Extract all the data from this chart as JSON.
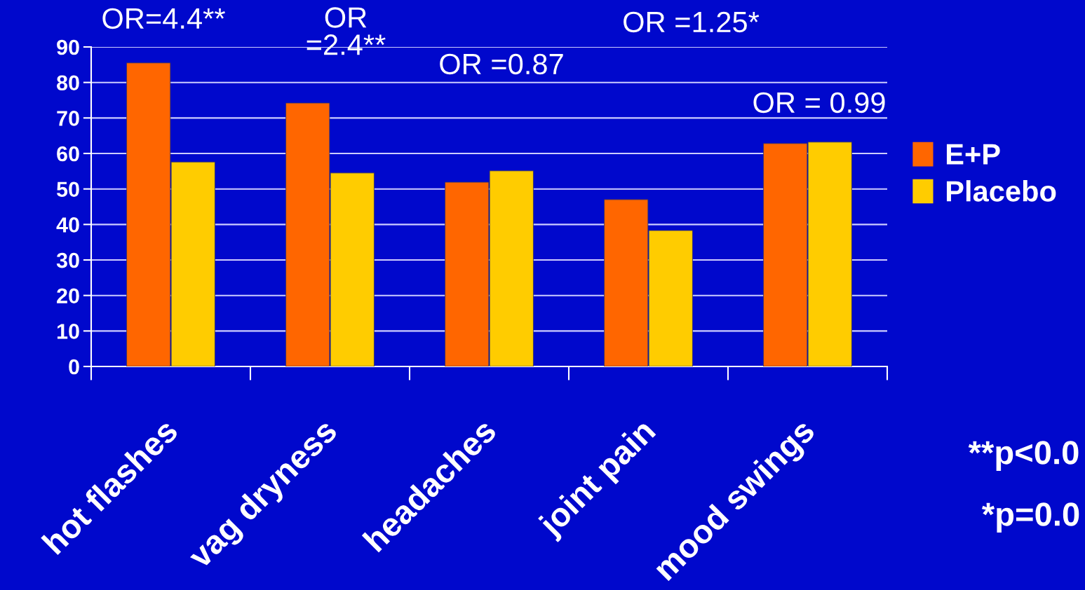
{
  "chart_data": {
    "type": "bar",
    "categories": [
      "hot flashes",
      "vag dryness",
      "headaches",
      "joint pain",
      "mood swings"
    ],
    "series": [
      {
        "name": "E+P",
        "color": "#ff6600",
        "values": [
          85.5,
          74.2,
          51.9,
          47.0,
          62.8
        ]
      },
      {
        "name": "Placebo",
        "color": "#ffcc00",
        "values": [
          57.6,
          54.5,
          55.1,
          38.3,
          63.2
        ]
      }
    ],
    "ylim": [
      0,
      90
    ],
    "yticks": [
      0,
      10,
      20,
      30,
      40,
      50,
      60,
      70,
      80,
      90
    ],
    "grid": "y",
    "legend": "right",
    "annotations": [
      "OR=4.4**",
      "OR\n=2.4**",
      "OR =0.87",
      "OR =1.25*",
      "OR = 0.99",
      "**p<0.0",
      "*p=0.0"
    ]
  }
}
